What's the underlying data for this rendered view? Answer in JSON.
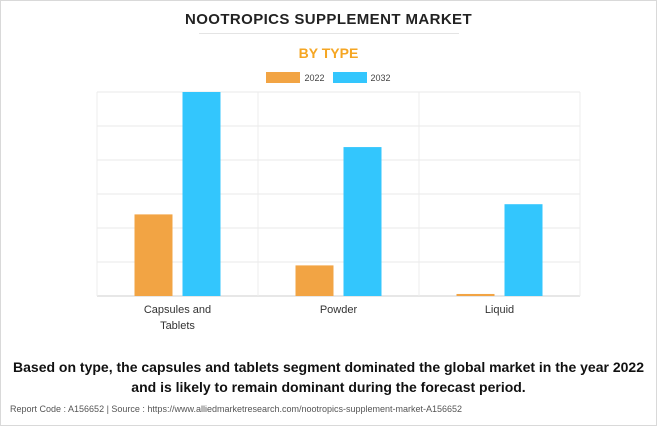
{
  "title": "NOOTROPICS SUPPLEMENT MARKET",
  "subtitle": "BY TYPE",
  "caption": "Based on type, the capsules and tablets segment dominated the global market in the year 2022 and is likely to remain dominant during the forecast period.",
  "footer": "Report Code : A156652  |  Source : https://www.alliedmarketresearch.com/nootropics-supplement-market-A156652",
  "colors": {
    "series_2022": "#f2a444",
    "series_2032": "#33c6fd"
  },
  "chart_data": {
    "type": "bar",
    "title": "NOOTROPICS SUPPLEMENT MARKET",
    "subtitle": "BY TYPE",
    "categories": [
      "Capsules and Tablets",
      "Powder",
      "Liquid"
    ],
    "category_lines": [
      [
        "Capsules and",
        "Tablets"
      ],
      [
        "Powder"
      ],
      [
        "Liquid"
      ]
    ],
    "series": [
      {
        "name": "2022",
        "values": [
          0.4,
          0.15,
          0.01
        ]
      },
      {
        "name": "2032",
        "values": [
          1.0,
          0.73,
          0.45
        ]
      }
    ],
    "ylim": [
      0,
      1.0
    ],
    "y_axis_labels": "none",
    "grid": true,
    "legend": "top-center"
  }
}
